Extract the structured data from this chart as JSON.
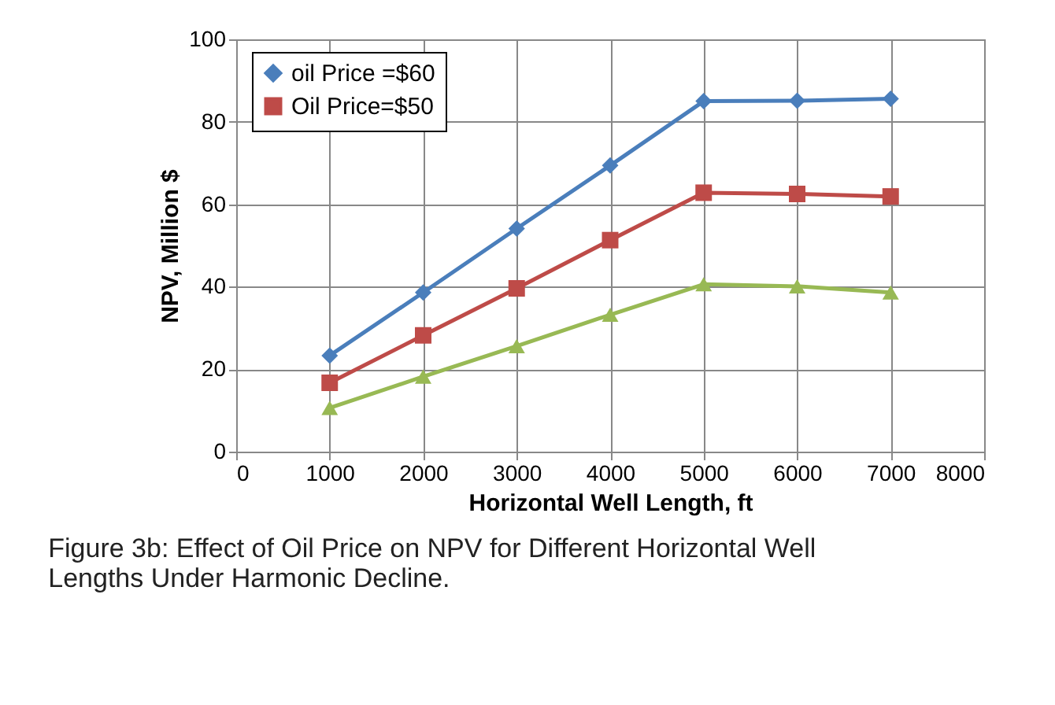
{
  "chart_data": {
    "type": "line",
    "x": [
      1000,
      2000,
      3000,
      4000,
      5000,
      6000,
      7000
    ],
    "series": [
      {
        "name": "oil Price =$60",
        "color": "#4a7ebb",
        "marker": "diamond",
        "values": [
          23.3,
          38.6,
          54.1,
          69.4,
          85.0,
          85.1,
          85.6
        ]
      },
      {
        "name": "Oil Price=$50",
        "color": "#be4b48",
        "marker": "square",
        "values": [
          16.7,
          28.2,
          39.6,
          51.3,
          62.8,
          62.5,
          61.9
        ]
      },
      {
        "color": "#98b954",
        "marker": "triangle",
        "values": [
          10.6,
          18.2,
          25.6,
          33.2,
          40.6,
          40.1,
          38.6
        ]
      }
    ],
    "xlabel": "Horizontal Well Length, ft",
    "ylabel": "NPV, Million $",
    "xlim": [
      0,
      8000
    ],
    "xticks": [
      0,
      1000,
      2000,
      3000,
      4000,
      5000,
      6000,
      7000,
      8000
    ],
    "ylim": [
      0,
      100
    ],
    "yticks": [
      0,
      20,
      40,
      60,
      80,
      100
    ],
    "grid": true,
    "legend": "top left",
    "line_style": "solid",
    "annotations": [
      "Figure 3b: Effect of Oil Price on NPV for Different Horizontal Well Lengths Under Harmonic Decline."
    ]
  }
}
